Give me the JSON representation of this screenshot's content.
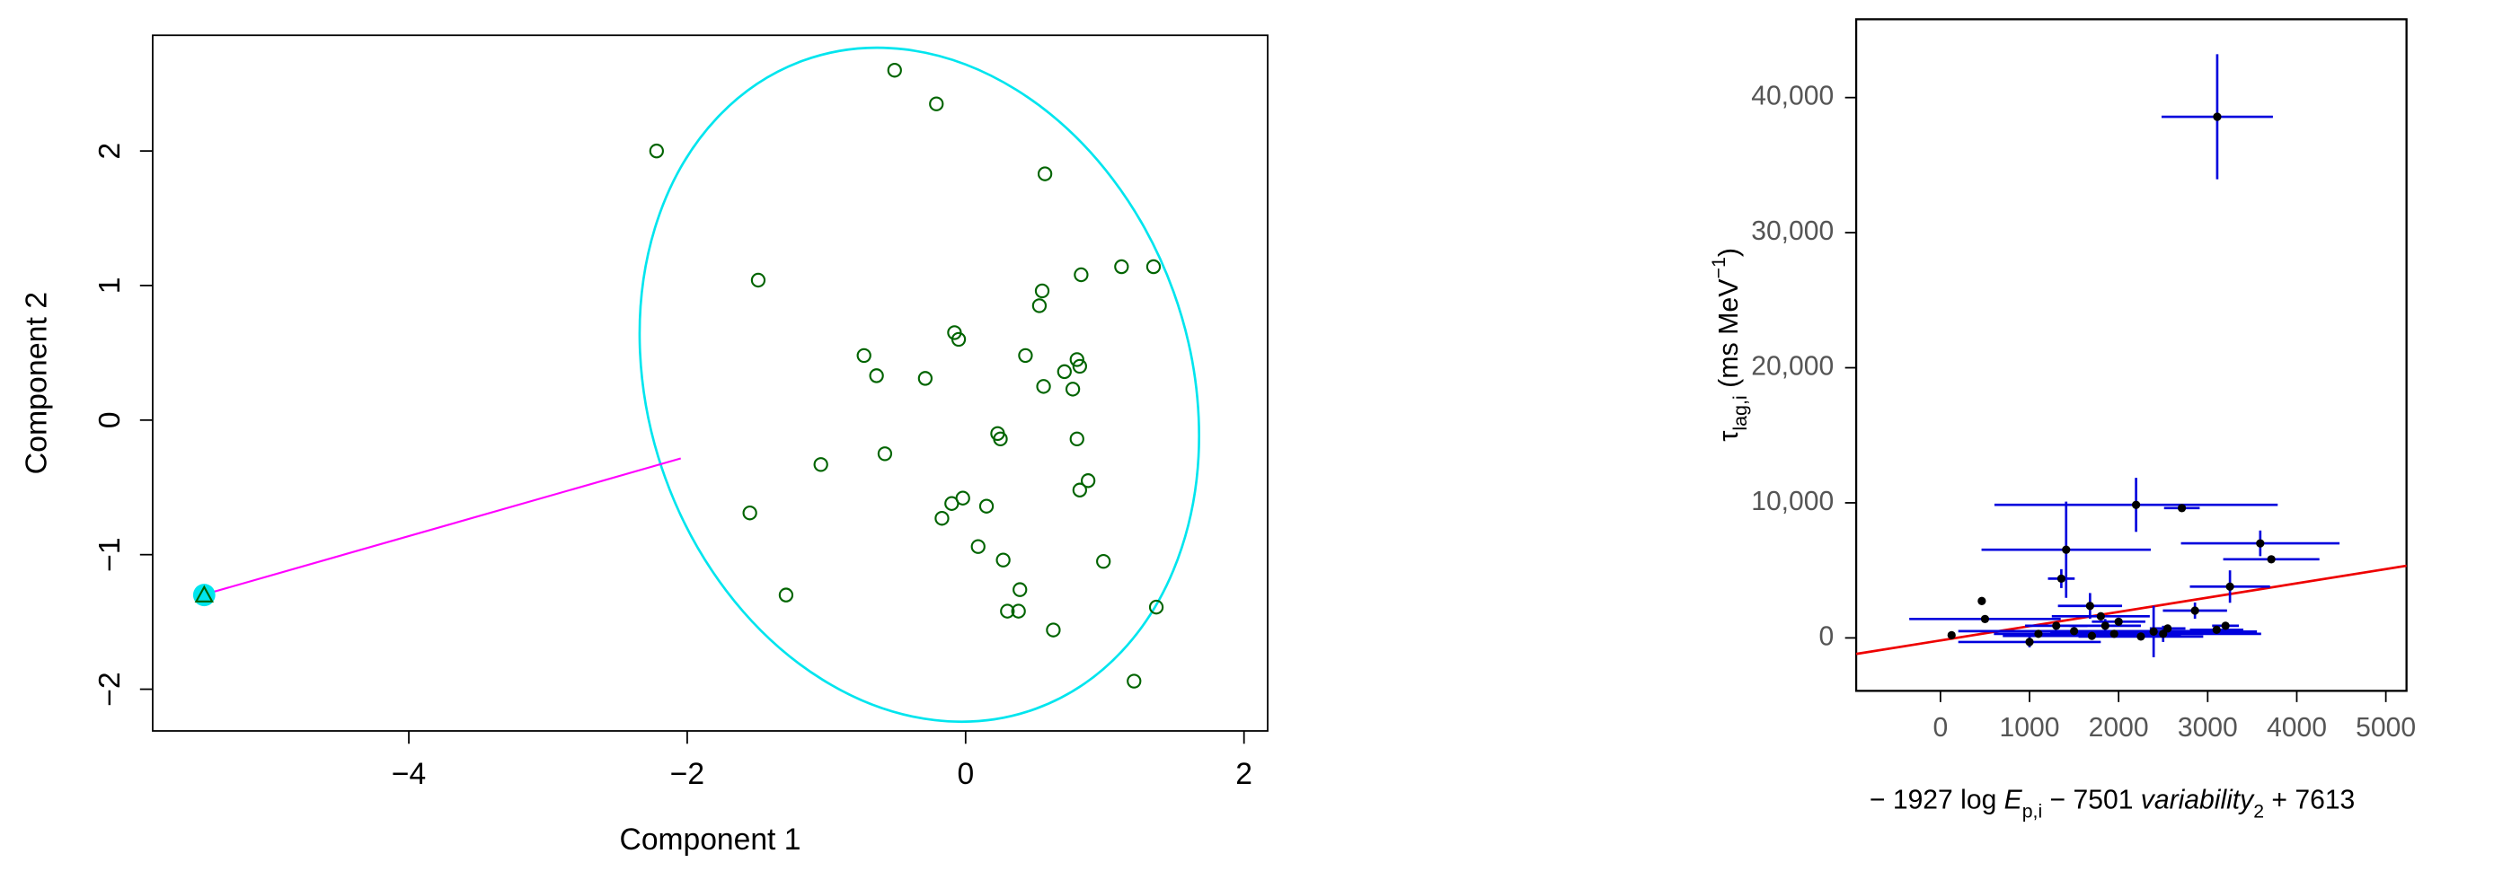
{
  "charts": [
    {
      "type": "scatter",
      "xlabel": "Component 1",
      "ylabel": "Component 2",
      "xlim": [
        -5.84,
        2.17
      ],
      "ylim": [
        -2.31,
        2.86
      ],
      "xticks": [
        {
          "value": -4,
          "label": "−4"
        },
        {
          "value": -2,
          "label": "−2"
        },
        0,
        2
      ],
      "yticks": [
        {
          "value": -2,
          "label": "−2"
        },
        {
          "value": -1,
          "label": "−1"
        },
        0,
        1,
        2
      ],
      "color": "#006400",
      "x": [
        -0.51,
        -0.21,
        -2.22,
        0.57,
        1.12,
        1.35,
        -1.49,
        0.83,
        0.55,
        0.53,
        -0.08,
        -0.05,
        -0.73,
        -0.64,
        -0.29,
        0.43,
        0.8,
        0.82,
        0.71,
        0.56,
        0.77,
        0.23,
        0.25,
        0.8,
        -0.58,
        -1.04,
        0.88,
        0.82,
        -0.02,
        -0.1,
        0.15,
        -1.55,
        -0.17,
        0.09,
        0.27,
        0.99,
        0.39,
        -1.29,
        0.3,
        0.38,
        1.37,
        0.63,
        1.21
      ],
      "y": [
        2.6,
        2.35,
        2.0,
        1.83,
        1.14,
        1.14,
        1.04,
        1.08,
        0.96,
        0.85,
        0.65,
        0.6,
        0.48,
        0.33,
        0.31,
        0.48,
        0.45,
        0.4,
        0.36,
        0.25,
        0.23,
        -0.1,
        -0.14,
        -0.14,
        -0.25,
        -0.33,
        -0.45,
        -0.52,
        -0.58,
        -0.62,
        -0.64,
        -0.69,
        -0.73,
        -0.94,
        -1.04,
        -1.05,
        -1.26,
        -1.3,
        -1.42,
        -1.42,
        -1.39,
        -1.56,
        -1.94
      ],
      "outlier": {
        "x": -5.47,
        "y": -1.3,
        "color": "#00e5ee"
      }
    },
    {
      "type": "scatter",
      "xlabel_parts": [
        {
          "text": "− 1927 log ",
          "style": "normal"
        },
        {
          "text": "E",
          "style": "italic"
        },
        {
          "text": "p,i",
          "style": "sub"
        },
        {
          "text": " − 7501 ",
          "style": "normal"
        },
        {
          "text": "variability",
          "style": "italic"
        },
        {
          "text": "2",
          "style": "sub"
        },
        {
          "text": " + 7613",
          "style": "normal"
        }
      ],
      "ylabel_parts": [
        {
          "text": "τ",
          "style": "normal"
        },
        {
          "text": "lag,i",
          "style": "sub"
        },
        {
          "text": " (ms MeV",
          "style": "normal"
        },
        {
          "text": "−1",
          "style": "sup"
        },
        {
          "text": ")",
          "style": "normal"
        }
      ],
      "xlim": [
        -946,
        5232
      ],
      "ylim": [
        -3920,
        45800
      ],
      "xticks": [
        0,
        1000,
        2000,
        3000,
        4000,
        5000
      ],
      "yticks": [
        0,
        {
          "value": 10000,
          "label": "10,000"
        },
        {
          "value": 20000,
          "label": "20,000"
        },
        {
          "value": 30000,
          "label": "30,000"
        },
        {
          "value": 40000,
          "label": "40,000"
        }
      ],
      "color": "#000000",
      "error_color": "#0000dd",
      "x": [
        3107,
        2196,
        2710,
        3590,
        3714,
        1411,
        1357,
        3250,
        1679,
        464,
        2857,
        2393,
        500,
        125,
        1000,
        1100,
        1500,
        1850,
        1950,
        2250,
        2550,
        1800,
        2000,
        1300,
        3100,
        3200,
        2500,
        1700
      ],
      "values": [
        38580,
        9850,
        9610,
        7000,
        5820,
        6530,
        4390,
        3800,
        2370,
        2730,
        2020,
        470,
        1400,
        200,
        -300,
        300,
        500,
        900,
        300,
        100,
        700,
        1600,
        1200,
        900,
        600,
        900,
        300,
        150
      ],
      "xerr": [
        625,
        1590,
        200,
        890,
        540,
        950,
        150,
        450,
        360,
        null,
        360,
        1160,
        850,
        null,
        800,
        500,
        1300,
        400,
        600,
        700,
        200,
        550,
        300,
        350,
        300,
        150,
        1100,
        1000
      ],
      "yerr": [
        4630,
        2000,
        null,
        950,
        null,
        3560,
        700,
        1200,
        950,
        null,
        600,
        1900,
        null,
        null,
        400,
        null,
        null,
        500,
        null,
        null,
        null,
        null,
        null,
        null,
        null,
        null,
        600,
        null
      ],
      "fit_line": {
        "x": [
          -946,
          5232
        ],
        "y": [
          -1187,
          5341
        ],
        "color": "#ee0000"
      }
    }
  ]
}
